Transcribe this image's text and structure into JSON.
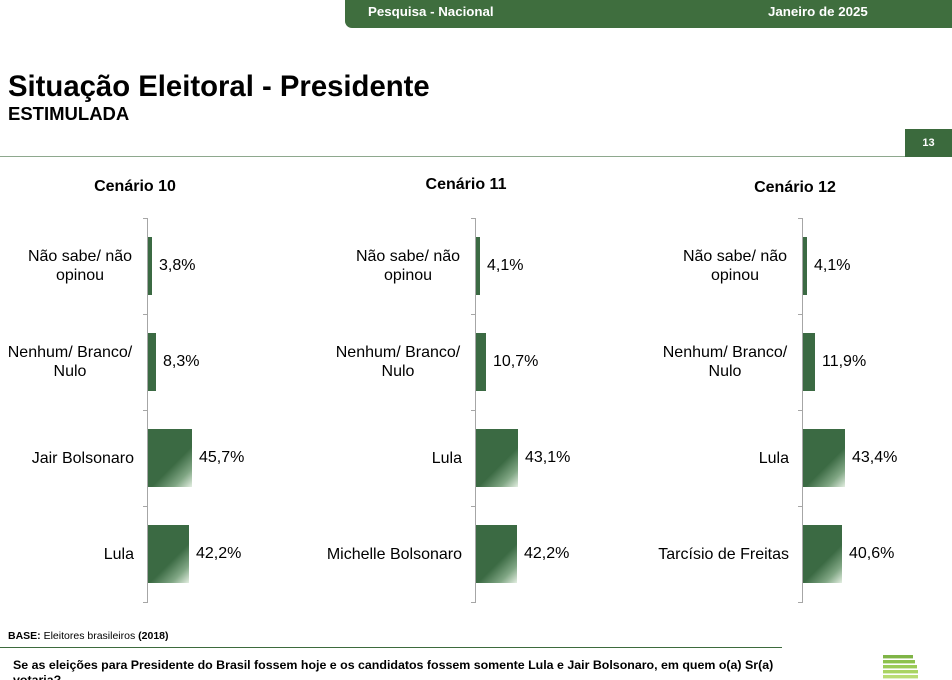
{
  "header": {
    "survey": "Pesquisa - Nacional",
    "date": "Janeiro de 2025"
  },
  "title": "Situação Eleitoral - Presidente",
  "subtitle": "ESTIMULADA",
  "page_number": "13",
  "chart_data": [
    {
      "type": "bar",
      "orientation": "horizontal",
      "title": "Cenário 10",
      "categories": [
        "Não sabe/ não opinou",
        "Nenhum/ Branco/ Nulo",
        "Jair Bolsonaro",
        "Lula"
      ],
      "values": [
        3.8,
        8.3,
        45.7,
        42.2
      ],
      "value_labels": [
        "3,8%",
        "8,3%",
        "45,7%",
        "42,2%"
      ],
      "grid": false,
      "legend": "none"
    },
    {
      "type": "bar",
      "orientation": "horizontal",
      "title": "Cenário 11",
      "categories": [
        "Não sabe/ não opinou",
        "Nenhum/ Branco/ Nulo",
        "Lula",
        "Michelle Bolsonaro"
      ],
      "values": [
        4.1,
        10.7,
        43.1,
        42.2
      ],
      "value_labels": [
        "4,1%",
        "10,7%",
        "43,1%",
        "42,2%"
      ],
      "grid": false,
      "legend": "none"
    },
    {
      "type": "bar",
      "orientation": "horizontal",
      "title": "Cenário 12",
      "categories": [
        "Não sabe/ não opinou",
        "Nenhum/ Branco/ Nulo",
        "Lula",
        "Tarcísio de Freitas"
      ],
      "values": [
        4.1,
        11.9,
        43.4,
        40.6
      ],
      "value_labels": [
        "4,1%",
        "11,9%",
        "43,4%",
        "40,6%"
      ],
      "grid": false,
      "legend": "none"
    }
  ],
  "footer": {
    "base_label": "BASE:",
    "base_text": "Eleitores brasileiros",
    "base_year": "(2018)",
    "question": "Se as eleições para Presidente do Brasil fossem hoje e os candidatos fossem somente Lula e Jair Bolsonaro, em quem o(a) Sr(a) votaria?"
  },
  "logo": {
    "icon": "stacked-stripes-logo-icon"
  },
  "colors": {
    "header_bg": "#3f6e3e",
    "bar_fill": "#3b6a43",
    "page_number_bg": "#3b6a3d",
    "top_rule": "#8ea88e",
    "footer_rule": "#3d6b3d"
  }
}
